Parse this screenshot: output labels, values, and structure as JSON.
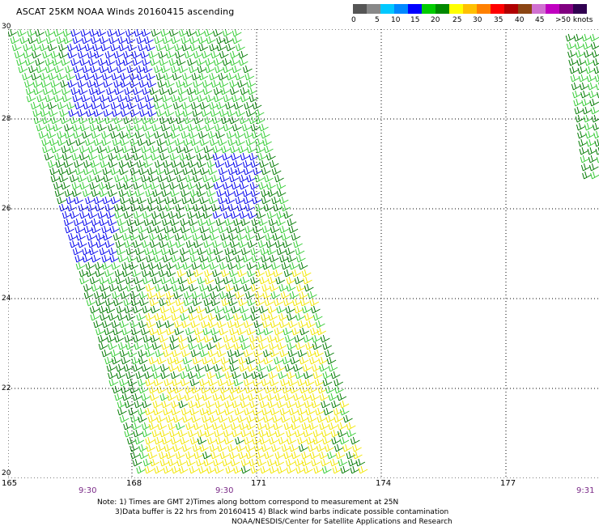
{
  "title": "ASCAT 25KM NOAA Winds 20160415 ascending",
  "scale": {
    "labels": [
      "0",
      "5",
      "10",
      "15",
      "20",
      "25",
      "30",
      "35",
      "40",
      "45",
      ">50 knots"
    ],
    "colors": [
      "#555555",
      "#888888",
      "#00c8ff",
      "#0088ff",
      "#0000ff",
      "#00cc00",
      "#008800",
      "#ffff00",
      "#ffc000",
      "#ff8000",
      "#ff0000",
      "#b00000",
      "#8b4513",
      "#d070d0",
      "#c000c0",
      "#800080",
      "#300050"
    ]
  },
  "axes": {
    "lat_labels": [
      "30",
      "28",
      "26",
      "24",
      "22",
      "20"
    ],
    "lon_labels": [
      "165",
      "168",
      "171",
      "174",
      "177"
    ],
    "time_labels": [
      "9:30",
      "9:30",
      "9:31"
    ]
  },
  "notes": {
    "line1": "Note: 1) Times are GMT 2)Times along bottom correspond to measurement at 25N",
    "line2": "3)Data buffer is 22 hrs from 20160415 4) Black wind barbs indicate possible contamination",
    "line3": "NOAA/NESDIS/Center for Satellite Applications and Research"
  },
  "map": {
    "lat_range": [
      20,
      30
    ],
    "lon_range": [
      165,
      179.2
    ],
    "grid": "dotted",
    "barb_colors": {
      "light_green": "#33cc33",
      "dark_green": "#007a00",
      "blue": "#0000ee",
      "yellow": "#f2e600"
    }
  }
}
